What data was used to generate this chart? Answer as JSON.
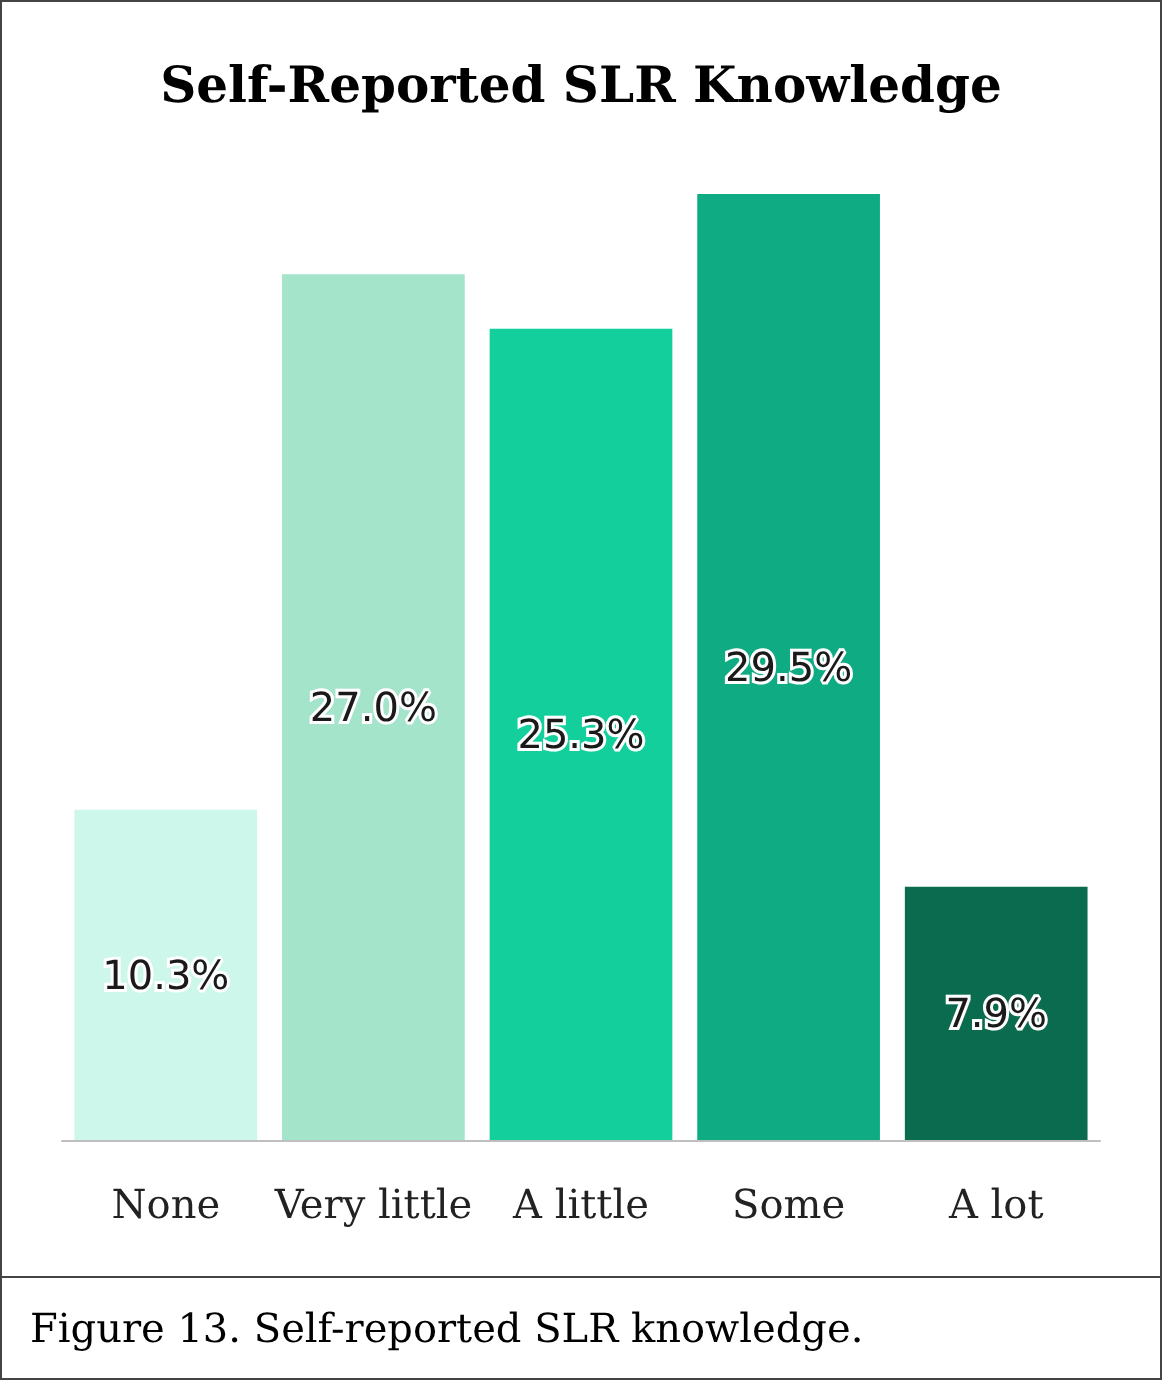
{
  "chart_data": {
    "type": "bar",
    "title": "Self-Reported SLR Knowledge",
    "categories": [
      "None",
      "Very little",
      "A little",
      "Some",
      "A lot"
    ],
    "values": [
      10.3,
      27.0,
      25.3,
      29.5,
      7.9
    ],
    "colors": [
      "#ccf7ea",
      "#a3e4cb",
      "#13cf9b",
      "#0fab83",
      "#0b6b4f"
    ],
    "value_labels": [
      "10.3%",
      "27.0%",
      "25.3%",
      "29.5%",
      "7.9%"
    ],
    "annotations": [
      "Figure 13.  Self-reported SLR knowledge."
    ]
  }
}
